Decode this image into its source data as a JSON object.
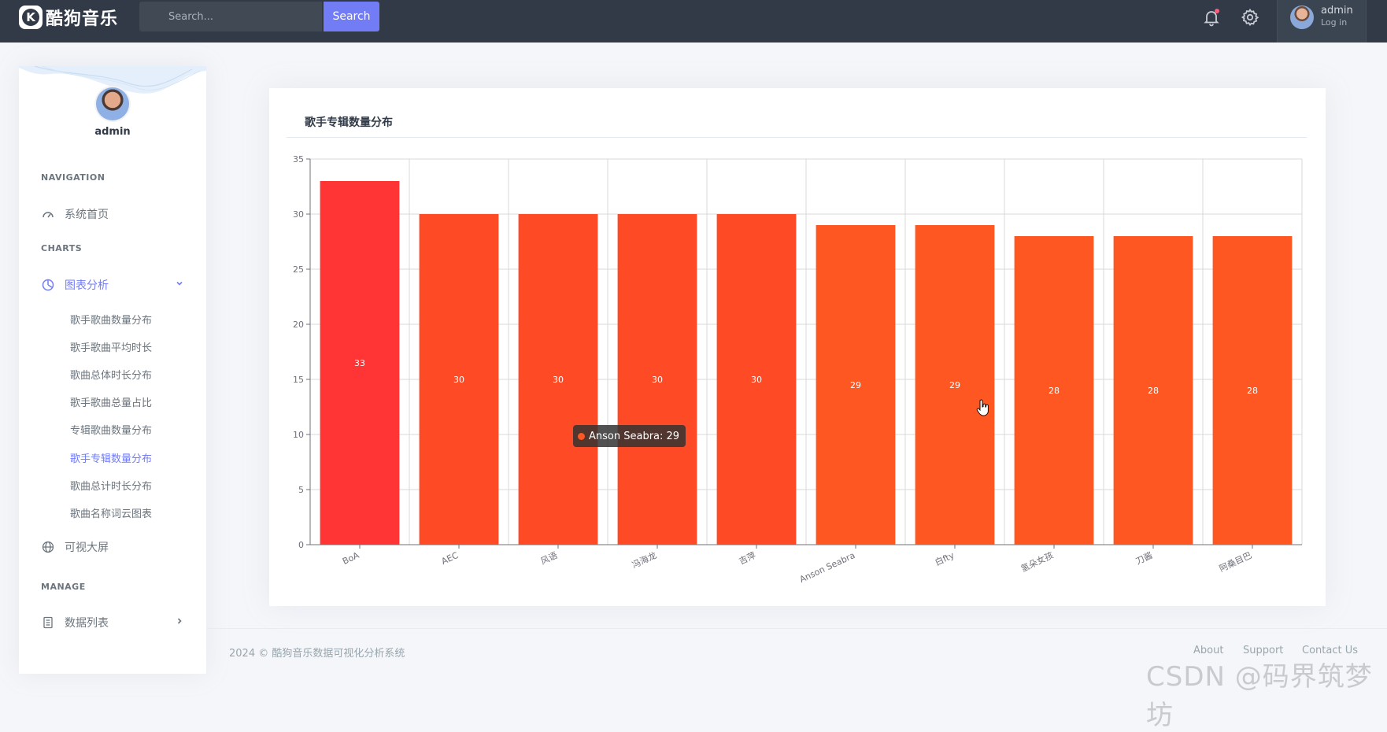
{
  "brand": {
    "logo_letter": "K",
    "name": "酷狗音乐"
  },
  "search": {
    "placeholder": "Search...",
    "button_label": "Search"
  },
  "user": {
    "name": "admin",
    "status": "Log in"
  },
  "sidebar": {
    "username": "admin",
    "sections": {
      "navigation": "NAVIGATION",
      "charts": "CHARTS",
      "manage": "MANAGE"
    },
    "items": {
      "home": "系统首页",
      "analysis": "图表分析",
      "bigscreen": "可视大屏",
      "datalist": "数据列表"
    },
    "sub_items": [
      "歌手歌曲数量分布",
      "歌手歌曲平均时长",
      "歌曲总体时长分布",
      "歌手歌曲总量占比",
      "专辑歌曲数量分布",
      "歌手专辑数量分布",
      "歌曲总计时长分布",
      "歌曲名称词云图表"
    ],
    "active_sub_index": 5
  },
  "card": {
    "title": "歌手专辑数量分布"
  },
  "chart_data": {
    "type": "bar",
    "title": "歌手专辑数量分布",
    "categories": [
      "BoA",
      "AEC",
      "风语",
      "冯海龙",
      "吉萍",
      "Anson Seabra",
      "白fty",
      "氢朵女孩",
      "刀酱",
      "阿桑目巴"
    ],
    "values": [
      33,
      30,
      30,
      30,
      30,
      29,
      29,
      28,
      28,
      28
    ],
    "ylim": [
      0,
      35
    ],
    "yticks": [
      0,
      5,
      10,
      15,
      20,
      25,
      30,
      35
    ],
    "grid": true,
    "data_labels": true,
    "colors": {
      "top": "#ff3434",
      "high": "#ff4a26",
      "mid": "#ff5722"
    },
    "tooltip": {
      "label": "Anson Seabra: 29"
    }
  },
  "footer": {
    "copyright": "2024 © 酷狗音乐数据可视化分析系统",
    "links": [
      "About",
      "Support",
      "Contact Us"
    ]
  },
  "watermark": "CSDN @码界筑梦坊"
}
